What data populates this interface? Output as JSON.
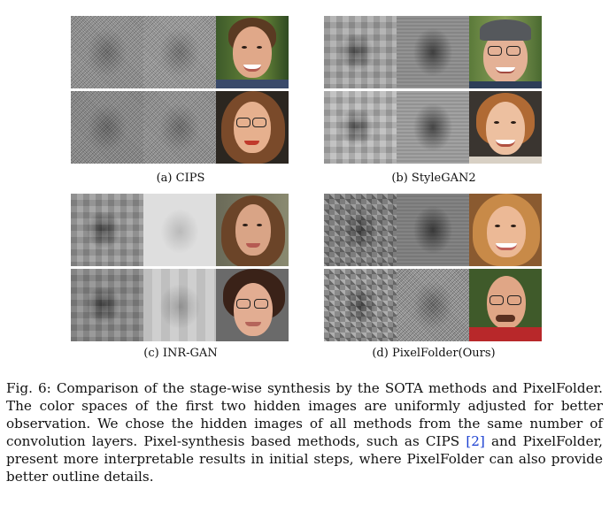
{
  "panels": [
    {
      "caption": "(a) CIPS"
    },
    {
      "caption": "(b) StyleGAN2"
    },
    {
      "caption": "(c) INR-GAN"
    },
    {
      "caption": "(d) PixelFolder(Ours)"
    }
  ],
  "figure_caption": {
    "part1": "Fig. 6: Comparison of the stage-wise synthesis by the SOTA methods and PixelFolder. The color spaces of the first two hidden images are uniformly adjusted for better observation. We chose the hidden images of all methods from the same number of convolution layers. Pixel-synthesis based methods, such as CIPS ",
    "citation": "[2]",
    "part2": " and PixelFolder, present more interpretable results in initial steps, where PixelFolder can also provide better outline details."
  }
}
